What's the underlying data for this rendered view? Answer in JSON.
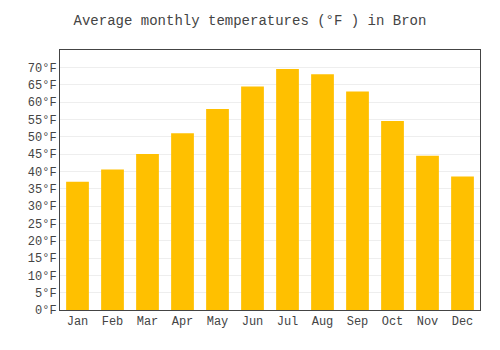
{
  "chart_data": {
    "type": "bar",
    "title": "Average monthly temperatures (°F ) in Bron",
    "categories": [
      "Jan",
      "Feb",
      "Mar",
      "Apr",
      "May",
      "Jun",
      "Jul",
      "Aug",
      "Sep",
      "Oct",
      "Nov",
      "Dec"
    ],
    "values": [
      37,
      40.5,
      45,
      51,
      58,
      64.5,
      69.5,
      68,
      63,
      54.5,
      44.5,
      38.5
    ],
    "color": "#FFC000",
    "ylim": [
      0,
      75
    ],
    "yticks": [
      {
        "value": 0,
        "label": "0°F"
      },
      {
        "value": 5,
        "label": "5°F"
      },
      {
        "value": 10,
        "label": "10°F"
      },
      {
        "value": 15,
        "label": "15°F"
      },
      {
        "value": 20,
        "label": "20°F"
      },
      {
        "value": 25,
        "label": "25°F"
      },
      {
        "value": 30,
        "label": "30°F"
      },
      {
        "value": 35,
        "label": "35°F"
      },
      {
        "value": 40,
        "label": "40°F"
      },
      {
        "value": 45,
        "label": "45°F"
      },
      {
        "value": 50,
        "label": "50°F"
      },
      {
        "value": 55,
        "label": "55°F"
      },
      {
        "value": 60,
        "label": "60°F"
      },
      {
        "value": 65,
        "label": "65°F"
      },
      {
        "value": 70,
        "label": "70°F"
      }
    ],
    "grid": true
  }
}
